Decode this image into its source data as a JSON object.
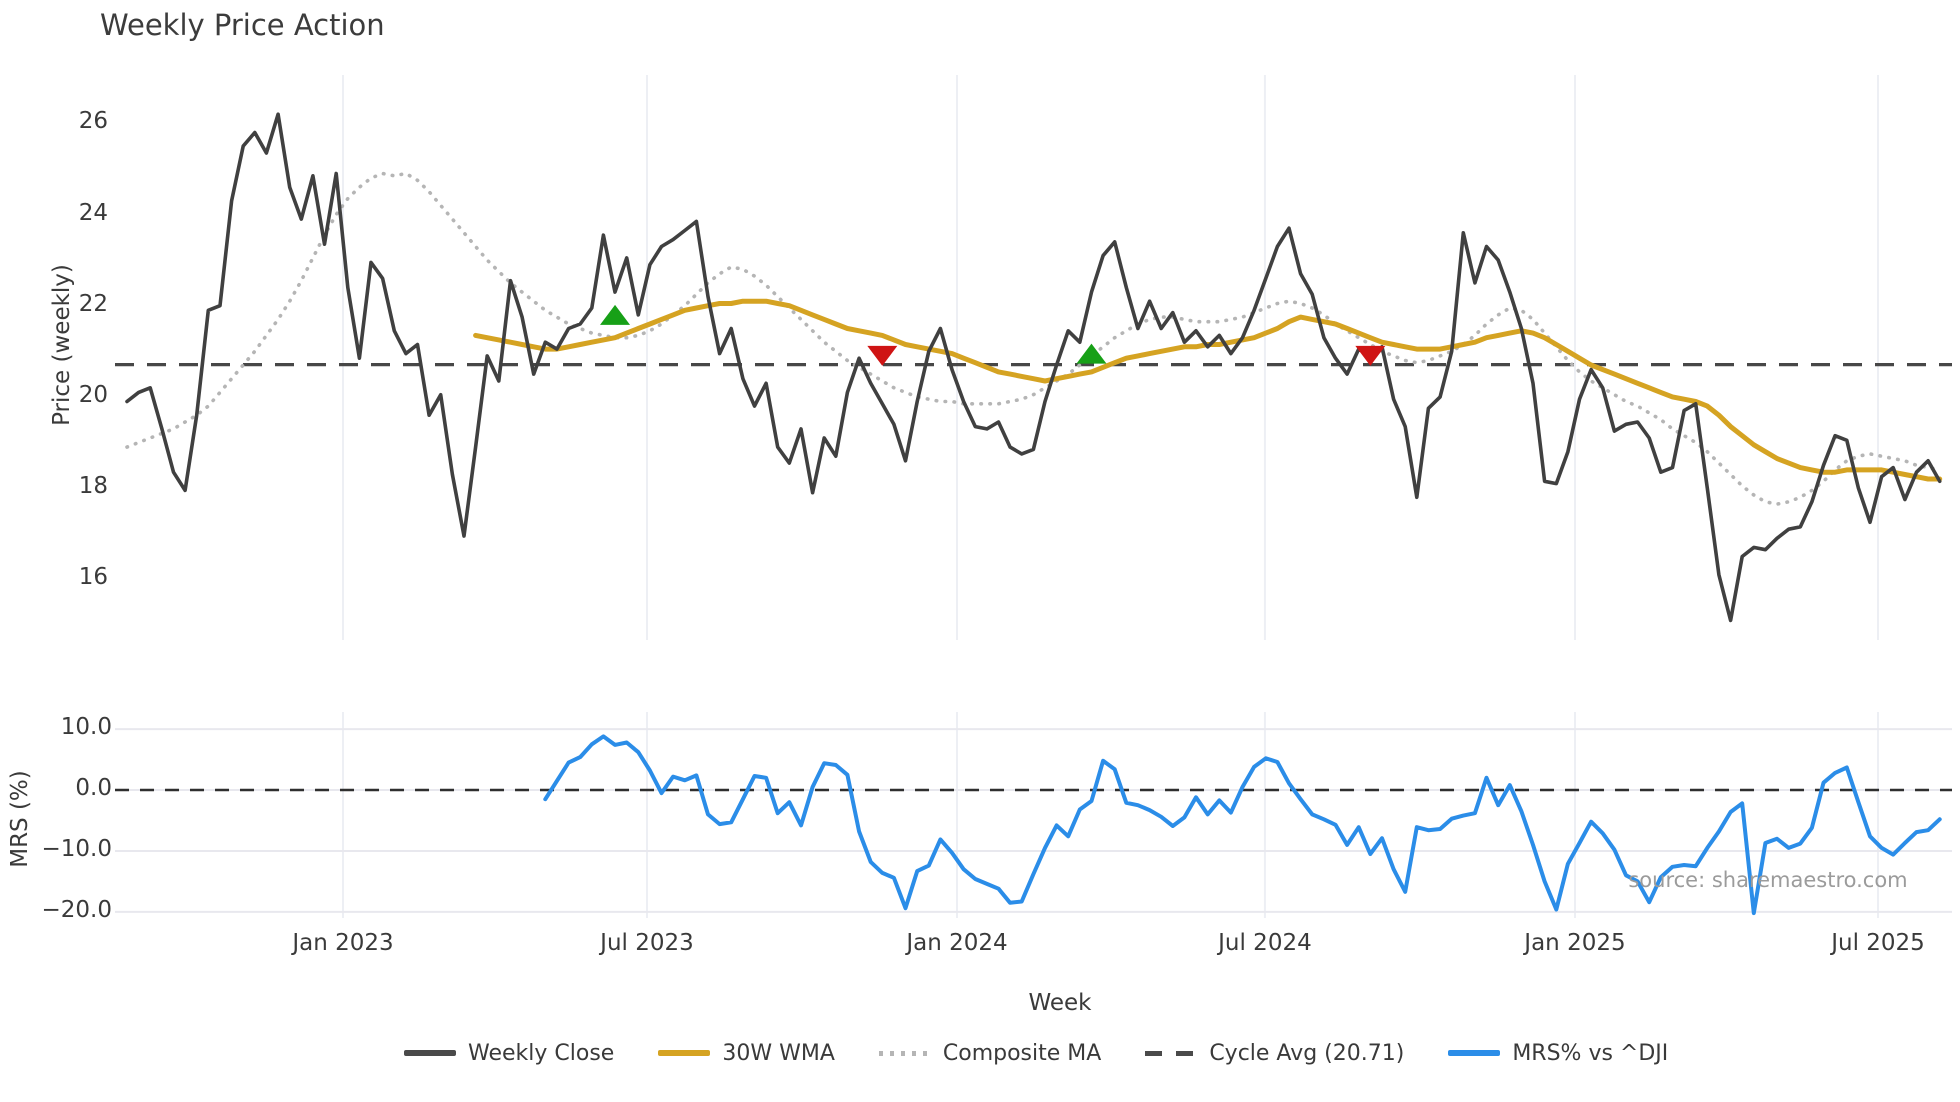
{
  "title": "Weekly Price Action",
  "source_note": "source: sharemaestro.com",
  "chart_data": {
    "type": "line",
    "title": "Weekly Price Action",
    "xlabel": "Week",
    "grid": "vertical-light",
    "legend_position": "bottom-center",
    "x_axis": {
      "tick_labels": [
        "Jan 2023",
        "Jul 2023",
        "Jan 2024",
        "Jul 2024",
        "Jan 2025",
        "Jul 2025"
      ],
      "tick_weeks": [
        18.59,
        44.75,
        71.43,
        97.93,
        124.61,
        150.69
      ],
      "week_domain": [
        -1,
        157.1
      ]
    },
    "panels": [
      {
        "name": "price",
        "ylabel": "Price (weekly)",
        "ylim": [
          14.67,
          27.06
        ],
        "yticks": [
          26,
          24,
          22,
          20,
          18,
          16
        ],
        "ytick_labels": [
          "26",
          "24",
          "22",
          "20",
          "18",
          "16"
        ]
      },
      {
        "name": "mrs",
        "ylabel": "MRS (%)",
        "ylim": [
          -21.0,
          12.8
        ],
        "yticks": [
          10,
          0,
          -10,
          -20
        ],
        "ytick_labels": [
          "10.0",
          "0.0",
          "−10.0",
          "−20.0"
        ],
        "zero_line": 0
      }
    ],
    "series": {
      "weekly_close": {
        "label": "Weekly Close",
        "color": "#404040",
        "panel": "price",
        "start_week": 0,
        "values": [
          19.9,
          20.1,
          20.2,
          19.3,
          18.35,
          17.95,
          19.6,
          21.9,
          22.0,
          24.3,
          25.5,
          25.8,
          25.35,
          26.2,
          24.6,
          23.9,
          24.85,
          23.35,
          24.9,
          22.4,
          20.85,
          22.95,
          22.6,
          21.45,
          20.95,
          21.15,
          19.6,
          20.05,
          18.3,
          16.95,
          18.9,
          20.9,
          20.35,
          22.55,
          21.75,
          20.5,
          21.2,
          21.05,
          21.5,
          21.6,
          21.95,
          23.55,
          22.3,
          23.05,
          21.8,
          22.9,
          23.3,
          23.45,
          23.65,
          23.85,
          22.2,
          20.95,
          21.5,
          20.4,
          19.8,
          20.3,
          18.9,
          18.55,
          19.3,
          17.9,
          19.1,
          18.7,
          20.1,
          20.85,
          20.3,
          19.85,
          19.4,
          18.6,
          19.9,
          21.0,
          21.5,
          20.6,
          19.9,
          19.35,
          19.3,
          19.45,
          18.9,
          18.75,
          18.85,
          19.9,
          20.7,
          21.45,
          21.2,
          22.3,
          23.1,
          23.4,
          22.4,
          21.5,
          22.1,
          21.5,
          21.85,
          21.2,
          21.45,
          21.1,
          21.35,
          20.95,
          21.3,
          21.9,
          22.6,
          23.3,
          23.7,
          22.7,
          22.25,
          21.3,
          20.85,
          20.5,
          21.05,
          20.9,
          21.1,
          19.95,
          19.35,
          17.8,
          19.75,
          20.0,
          21.0,
          23.6,
          22.5,
          23.3,
          23.0,
          22.3,
          21.5,
          20.3,
          18.15,
          18.1,
          18.8,
          19.95,
          20.6,
          20.2,
          19.25,
          19.4,
          19.45,
          19.1,
          18.35,
          18.45,
          19.7,
          19.85,
          18.0,
          16.1,
          15.1,
          16.5,
          16.7,
          16.65,
          16.9,
          17.1,
          17.15,
          17.7,
          18.5,
          19.15,
          19.05,
          18.0,
          17.25,
          18.25,
          18.45,
          17.75,
          18.35,
          18.6,
          18.15
        ]
      },
      "wma_30w": {
        "label": "30W WMA",
        "color": "#d5a322",
        "panel": "price",
        "start_week": 30,
        "values": [
          21.35,
          21.3,
          21.25,
          21.2,
          21.15,
          21.1,
          21.05,
          21.05,
          21.1,
          21.15,
          21.2,
          21.25,
          21.3,
          21.4,
          21.5,
          21.6,
          21.7,
          21.8,
          21.9,
          21.95,
          22.0,
          22.05,
          22.05,
          22.1,
          22.1,
          22.1,
          22.05,
          22.0,
          21.9,
          21.8,
          21.7,
          21.6,
          21.5,
          21.45,
          21.4,
          21.35,
          21.25,
          21.15,
          21.1,
          21.05,
          21.0,
          20.95,
          20.85,
          20.75,
          20.65,
          20.55,
          20.5,
          20.45,
          20.4,
          20.35,
          20.4,
          20.45,
          20.5,
          20.55,
          20.65,
          20.75,
          20.85,
          20.9,
          20.95,
          21.0,
          21.05,
          21.1,
          21.1,
          21.15,
          21.15,
          21.2,
          21.25,
          21.3,
          21.4,
          21.5,
          21.65,
          21.75,
          21.7,
          21.65,
          21.6,
          21.5,
          21.4,
          21.3,
          21.2,
          21.15,
          21.1,
          21.05,
          21.05,
          21.05,
          21.1,
          21.15,
          21.2,
          21.3,
          21.35,
          21.4,
          21.45,
          21.4,
          21.3,
          21.15,
          21.0,
          20.85,
          20.7,
          20.6,
          20.5,
          20.4,
          20.3,
          20.2,
          20.1,
          20.0,
          19.95,
          19.9,
          19.8,
          19.6,
          19.35,
          19.15,
          18.95,
          18.8,
          18.65,
          18.55,
          18.45,
          18.4,
          18.35,
          18.35,
          18.4,
          18.4,
          18.4,
          18.4,
          18.35,
          18.3,
          18.25,
          18.2,
          18.2
        ]
      },
      "composite_ma": {
        "label": "Composite MA",
        "color": "#b5b5b5",
        "panel": "price",
        "start_week": 0,
        "values": [
          18.9,
          19.0,
          19.1,
          19.2,
          19.3,
          19.45,
          19.6,
          19.8,
          20.1,
          20.4,
          20.7,
          21.0,
          21.35,
          21.7,
          22.1,
          22.55,
          23.05,
          23.55,
          24.0,
          24.35,
          24.6,
          24.8,
          24.9,
          24.85,
          24.9,
          24.75,
          24.5,
          24.2,
          23.9,
          23.6,
          23.3,
          23.0,
          22.75,
          22.5,
          22.3,
          22.1,
          21.9,
          21.75,
          21.6,
          21.5,
          21.4,
          21.35,
          21.3,
          21.3,
          21.35,
          21.45,
          21.6,
          21.8,
          22.0,
          22.25,
          22.5,
          22.7,
          22.85,
          22.8,
          22.65,
          22.45,
          22.2,
          21.95,
          21.7,
          21.45,
          21.2,
          21.0,
          20.8,
          20.65,
          20.5,
          20.35,
          20.2,
          20.1,
          20.0,
          19.95,
          19.9,
          19.9,
          19.85,
          19.85,
          19.85,
          19.85,
          19.9,
          19.95,
          20.05,
          20.2,
          20.35,
          20.5,
          20.7,
          20.9,
          21.1,
          21.3,
          21.45,
          21.6,
          21.7,
          21.75,
          21.75,
          21.7,
          21.65,
          21.65,
          21.65,
          21.7,
          21.75,
          21.85,
          21.95,
          22.05,
          22.1,
          22.05,
          21.95,
          21.8,
          21.6,
          21.45,
          21.3,
          21.15,
          21.0,
          20.9,
          20.8,
          20.75,
          20.8,
          20.9,
          21.0,
          21.15,
          21.35,
          21.6,
          21.8,
          21.95,
          21.9,
          21.7,
          21.4,
          21.1,
          20.8,
          20.55,
          20.35,
          20.2,
          20.05,
          19.9,
          19.8,
          19.65,
          19.5,
          19.3,
          19.15,
          19.0,
          18.8,
          18.55,
          18.3,
          18.05,
          17.85,
          17.7,
          17.65,
          17.7,
          17.8,
          17.95,
          18.15,
          18.4,
          18.6,
          18.7,
          18.75,
          18.7,
          18.65,
          18.6,
          18.5,
          18.45,
          18.4
        ]
      },
      "cycle_avg": {
        "label": "Cycle Avg (20.71)",
        "color": "#474747",
        "panel": "price",
        "value": 20.71
      },
      "mrs_pct": {
        "label": "MRS% vs ^DJI",
        "color": "#2b8de8",
        "panel": "mrs",
        "start_week": 36,
        "values": [
          -1.5,
          1.5,
          4.5,
          5.4,
          7.5,
          8.8,
          7.4,
          7.8,
          6.2,
          3.2,
          -0.5,
          2.2,
          1.6,
          2.4,
          -4.0,
          -5.6,
          -5.3,
          -1.5,
          2.3,
          2.0,
          -3.8,
          -2.0,
          -5.8,
          0.5,
          4.4,
          4.1,
          2.5,
          -6.8,
          -11.8,
          -13.6,
          -14.4,
          -19.4,
          -13.3,
          -12.4,
          -8.1,
          -10.3,
          -13.0,
          -14.6,
          -15.4,
          -16.2,
          -18.5,
          -18.3,
          -13.8,
          -9.5,
          -5.8,
          -7.6,
          -3.2,
          -1.8,
          4.8,
          3.4,
          -2.1,
          -2.5,
          -3.3,
          -4.4,
          -5.9,
          -4.5,
          -1.2,
          -4.0,
          -1.7,
          -3.7,
          0.5,
          3.8,
          5.2,
          4.6,
          1.1,
          -1.5,
          -4.0,
          -4.8,
          -5.7,
          -9.0,
          -6.1,
          -10.5,
          -7.9,
          -13.0,
          -16.7,
          -6.1,
          -6.6,
          -6.4,
          -4.7,
          -4.2,
          -3.8,
          2.0,
          -2.5,
          0.8,
          -3.5,
          -9.0,
          -15.0,
          -19.6,
          -12.1,
          -8.7,
          -5.2,
          -7.1,
          -9.8,
          -14.0,
          -15.0,
          -18.4,
          -14.3,
          -12.6,
          -12.3,
          -12.5,
          -9.5,
          -6.8,
          -3.6,
          -2.2,
          -20.2,
          -8.7,
          -8.0,
          -9.5,
          -8.8,
          -6.2,
          1.2,
          2.8,
          3.7,
          -2.0,
          -7.6,
          -9.5,
          -10.6,
          -8.7,
          -6.9,
          -6.6,
          -4.8
        ]
      }
    },
    "markers": [
      {
        "shape": "triangle-up",
        "color": "#17a017",
        "week": 42,
        "price": 21.8
      },
      {
        "shape": "triangle-down",
        "color": "#cf1414",
        "week": 65,
        "price": 20.9
      },
      {
        "shape": "triangle-up",
        "color": "#17a017",
        "week": 83,
        "price": 20.95
      },
      {
        "shape": "triangle-down",
        "color": "#cf1414",
        "week": 107,
        "price": 20.9
      }
    ]
  }
}
